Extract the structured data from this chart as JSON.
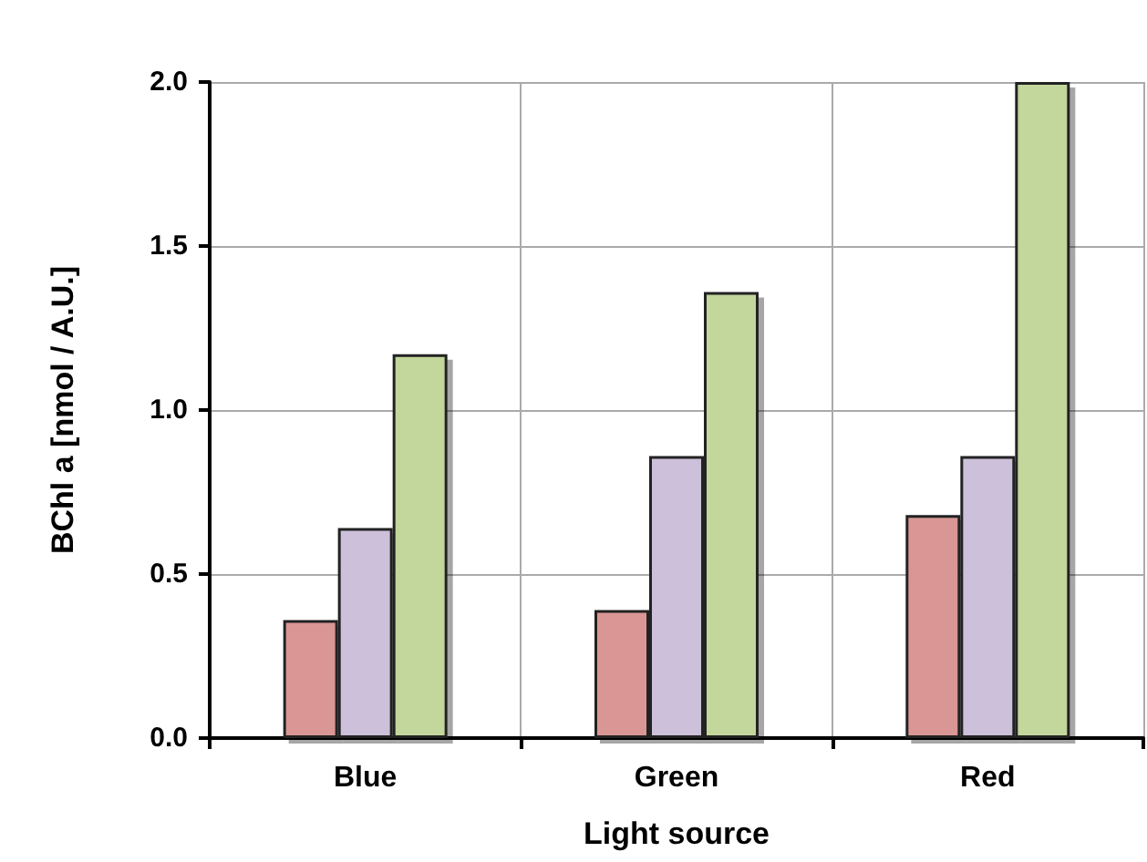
{
  "chart_data": {
    "type": "bar",
    "xlabel": "Light source",
    "ylabel": "BChl a [nmol / A.U.]",
    "categories": [
      "Blue",
      "Green",
      "Red"
    ],
    "series": [
      {
        "color": "#d99694",
        "values": [
          0.36,
          0.39,
          0.68
        ]
      },
      {
        "color": "#ccc0da",
        "values": [
          0.64,
          0.86,
          0.86
        ]
      },
      {
        "color": "#c3d69b",
        "values": [
          1.17,
          1.36,
          2.0
        ]
      }
    ],
    "ylim": [
      0,
      2
    ],
    "yticks": [
      {
        "value": 0,
        "label": "0.0"
      },
      {
        "value": 0.5,
        "label": "0.5"
      },
      {
        "value": 1,
        "label": "1.0"
      },
      {
        "value": 1.5,
        "label": "1.5"
      },
      {
        "value": 2,
        "label": "2.0"
      }
    ],
    "grid": true
  }
}
